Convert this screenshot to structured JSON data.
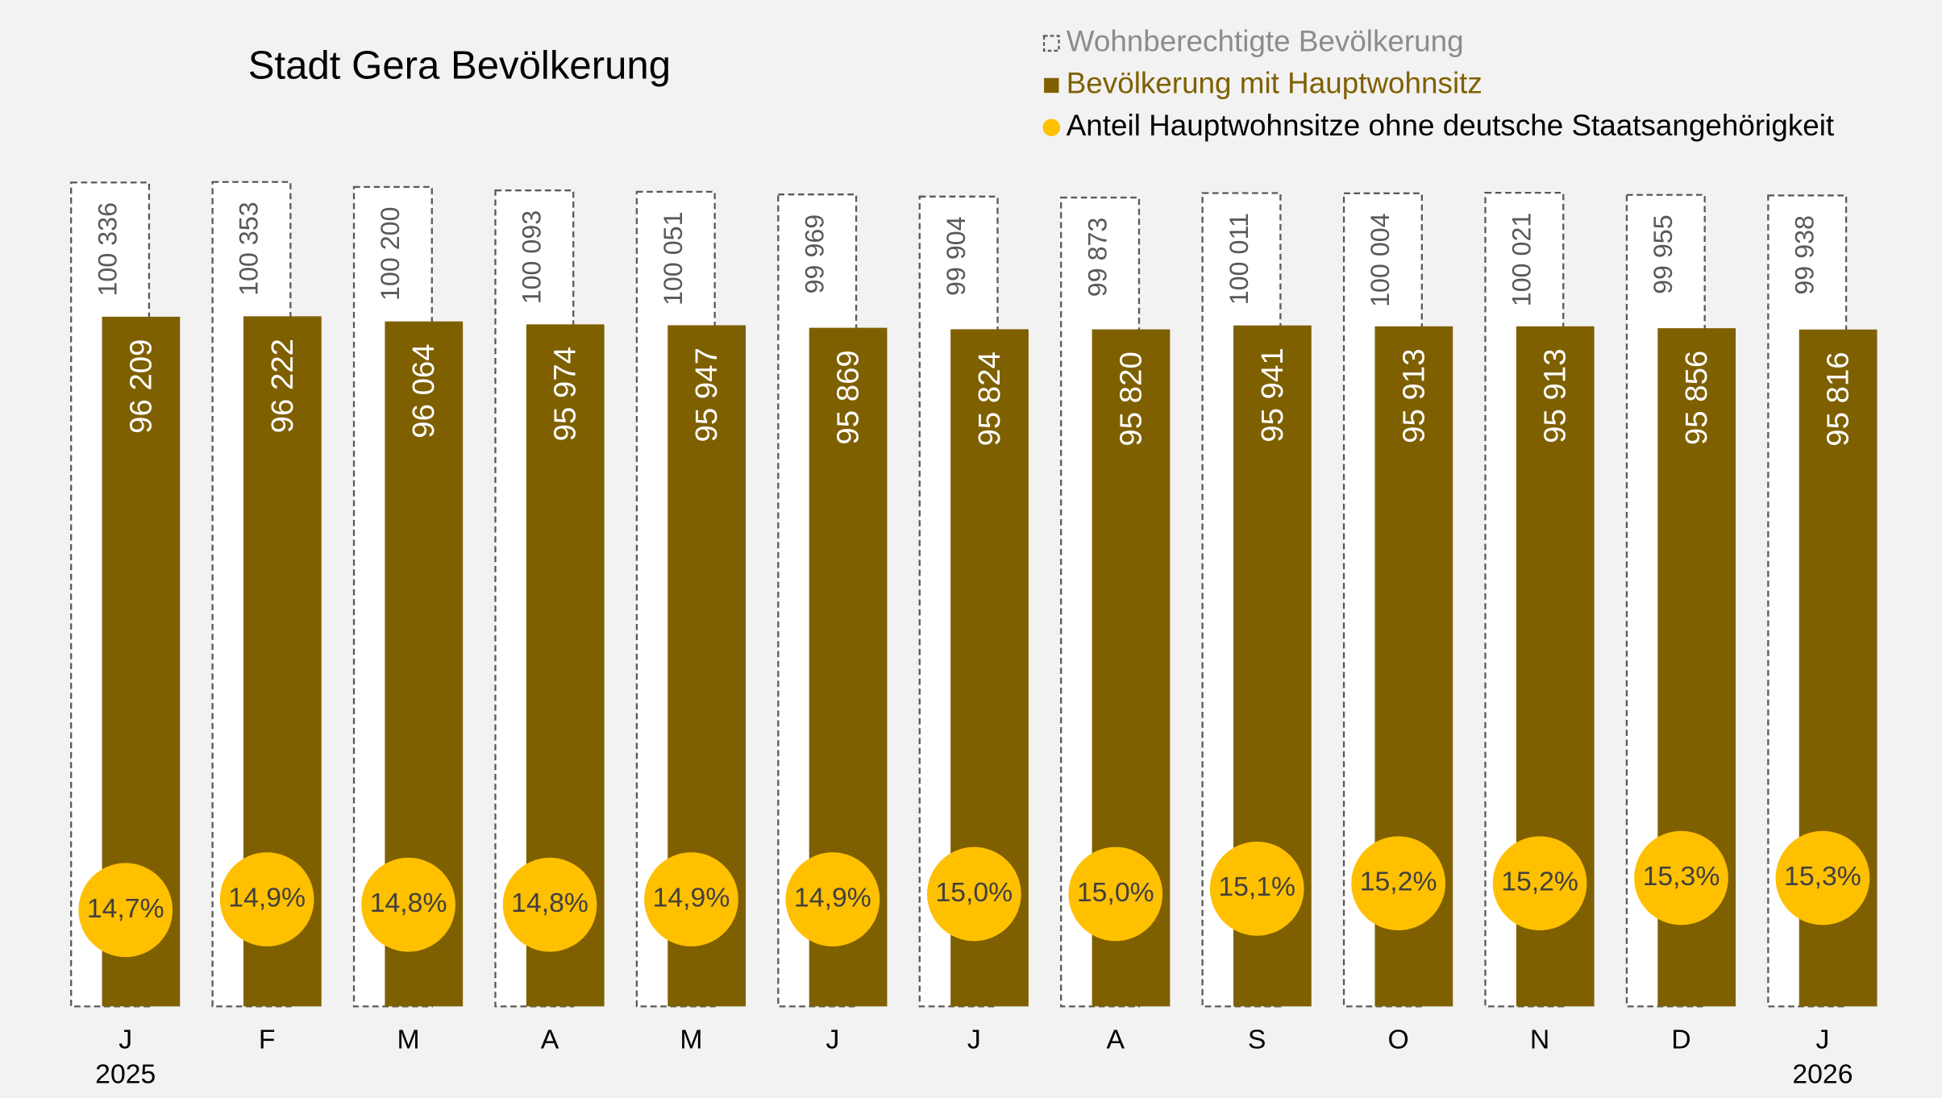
{
  "chart_data": {
    "type": "bar",
    "title": "Stadt Gera Bevölkerung",
    "categories": [
      "J",
      "F",
      "M",
      "A",
      "M",
      "J",
      "J",
      "A",
      "S",
      "O",
      "N",
      "D",
      "J"
    ],
    "years": [
      "2025",
      null,
      null,
      null,
      null,
      null,
      null,
      null,
      null,
      null,
      null,
      null,
      "2026"
    ],
    "series": [
      {
        "name": "Wohnberechtigte Bevölkerung",
        "color": "#595959",
        "style": "dashed",
        "values": [
          100336,
          100353,
          100200,
          100093,
          100051,
          99969,
          99904,
          99873,
          100011,
          100004,
          100021,
          99955,
          99938
        ],
        "value_labels": [
          "100 336",
          "100 353",
          "100 200",
          "100 093",
          "100 051",
          "99 969",
          "99 904",
          "99 873",
          "100 011",
          "100 004",
          "100 021",
          "99 955",
          "99 938"
        ]
      },
      {
        "name": "Bevölkerung mit Hauptwohnsitz",
        "color": "#7f6000",
        "values": [
          96209,
          96222,
          96064,
          95974,
          95947,
          95869,
          95824,
          95820,
          95941,
          95913,
          95913,
          95856,
          95816
        ],
        "value_labels": [
          "96 209",
          "96 222",
          "96 064",
          "95 974",
          "95 947",
          "95 869",
          "95 824",
          "95 820",
          "95 941",
          "95 913",
          "95 913",
          "95 856",
          "95 816"
        ]
      },
      {
        "name": "Anteil Hauptwohnsitze ohne deutsche Staatsangehörigkeit",
        "color": "#ffc000",
        "axis": "y2",
        "marker": "circle",
        "values": [
          14.7,
          14.9,
          14.8,
          14.8,
          14.9,
          14.9,
          15.0,
          15.0,
          15.1,
          15.2,
          15.2,
          15.3,
          15.3
        ],
        "value_labels": [
          "14,7%",
          "14,9%",
          "14,8%",
          "14,8%",
          "14,9%",
          "14,9%",
          "15,0%",
          "15,0%",
          "15,1%",
          "15,2%",
          "15,2%",
          "15,3%",
          "15,3%"
        ]
      }
    ],
    "ylim": [
      75000,
      101000
    ],
    "y2lim": [
      12.9,
      28.7
    ]
  }
}
